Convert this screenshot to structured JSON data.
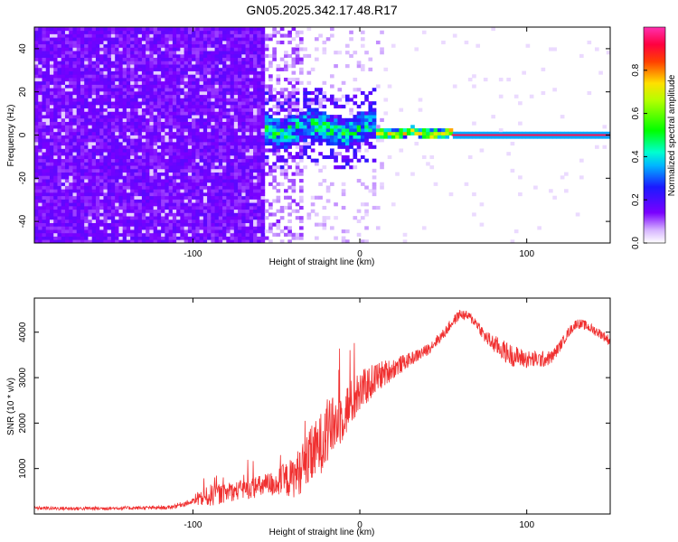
{
  "title": "GN05.2025.342.17.48.R17",
  "colors": {
    "spectrogram_noise": "#7a00ff",
    "snr_line": "#f03030",
    "axis": "#000000"
  },
  "chart_data": [
    {
      "type": "heatmap",
      "name": "spectrogram",
      "xlabel": "Height of straight line (km)",
      "ylabel": "Frequency (Hz)",
      "xlim": [
        -195,
        150
      ],
      "ylim": [
        -50,
        50
      ],
      "x_ticks": [
        -100,
        0,
        100
      ],
      "x_tick_labels": [
        "-100",
        "0",
        "100"
      ],
      "y_ticks": [
        -40,
        -20,
        0,
        20,
        40
      ],
      "y_tick_labels": [
        "-40",
        "-20",
        "0",
        "20",
        "40"
      ],
      "colorbar": {
        "label": "Normalized spectral amplitude",
        "range": [
          0,
          1
        ],
        "ticks": [
          0,
          0.2,
          0.4,
          0.6,
          0.8
        ],
        "tick_labels": [
          "0.0",
          "0.2",
          "0.4",
          "0.6",
          "0.8"
        ],
        "colormap": "white-purple-blue-cyan-green-yellow-red-magenta"
      },
      "regions": [
        {
          "x_from": -195,
          "x_to": -57,
          "freq_from": -50,
          "freq_to": 50,
          "amplitude": "0.1-0.2",
          "description": "broadband noise"
        },
        {
          "x_from": -57,
          "x_to": -30,
          "freq_from": -50,
          "freq_to": 50,
          "amplitude": "0.0-0.1",
          "description": "sparse noise"
        },
        {
          "x_from": -55,
          "x_to": 10,
          "freq_from": -5,
          "freq_to": 10,
          "amplitude": "0.3-0.6",
          "description": "emerging tone"
        },
        {
          "x_from": 10,
          "x_to": 55,
          "freq_from": -2,
          "freq_to": 4,
          "amplitude": "0.6-1.0",
          "description": "narrowing tone"
        },
        {
          "x_from": 55,
          "x_to": 150,
          "freq_from": -1,
          "freq_to": 1,
          "amplitude": "1.0",
          "description": "carrier tone at 0 Hz"
        }
      ]
    },
    {
      "type": "line",
      "name": "snr",
      "xlabel": "Height of straight line (km)",
      "ylabel": "SNR (10 * v/v)",
      "xlim": [
        -195,
        150
      ],
      "ylim": [
        0,
        4750
      ],
      "x_ticks": [
        -100,
        0,
        100
      ],
      "x_tick_labels": [
        "-100",
        "0",
        "100"
      ],
      "y_ticks": [
        1000,
        2000,
        3000,
        4000
      ],
      "y_tick_labels": [
        "1000",
        "2000",
        "3000",
        "4000"
      ],
      "series": [
        {
          "name": "SNR",
          "x": [
            -195,
            -170,
            -140,
            -115,
            -100,
            -90,
            -80,
            -70,
            -60,
            -50,
            -40,
            -30,
            -20,
            -10,
            0,
            10,
            20,
            30,
            40,
            50,
            55,
            60,
            65,
            70,
            75,
            80,
            90,
            100,
            110,
            115,
            120,
            125,
            130,
            135,
            140,
            145,
            150
          ],
          "y": [
            130,
            120,
            130,
            140,
            270,
            400,
            460,
            540,
            600,
            680,
            800,
            1200,
            1750,
            2200,
            2680,
            3000,
            3200,
            3400,
            3600,
            3950,
            4200,
            4400,
            4350,
            4200,
            3900,
            3750,
            3500,
            3400,
            3400,
            3450,
            3700,
            4000,
            4200,
            4150,
            4050,
            3950,
            3800
          ],
          "noise": [
            40,
            40,
            40,
            40,
            70,
            250,
            200,
            220,
            250,
            300,
            450,
            650,
            700,
            600,
            450,
            350,
            230,
            150,
            130,
            120,
            120,
            110,
            110,
            120,
            150,
            200,
            250,
            200,
            180,
            150,
            120,
            110,
            110,
            110,
            110,
            110,
            120
          ]
        }
      ]
    }
  ]
}
